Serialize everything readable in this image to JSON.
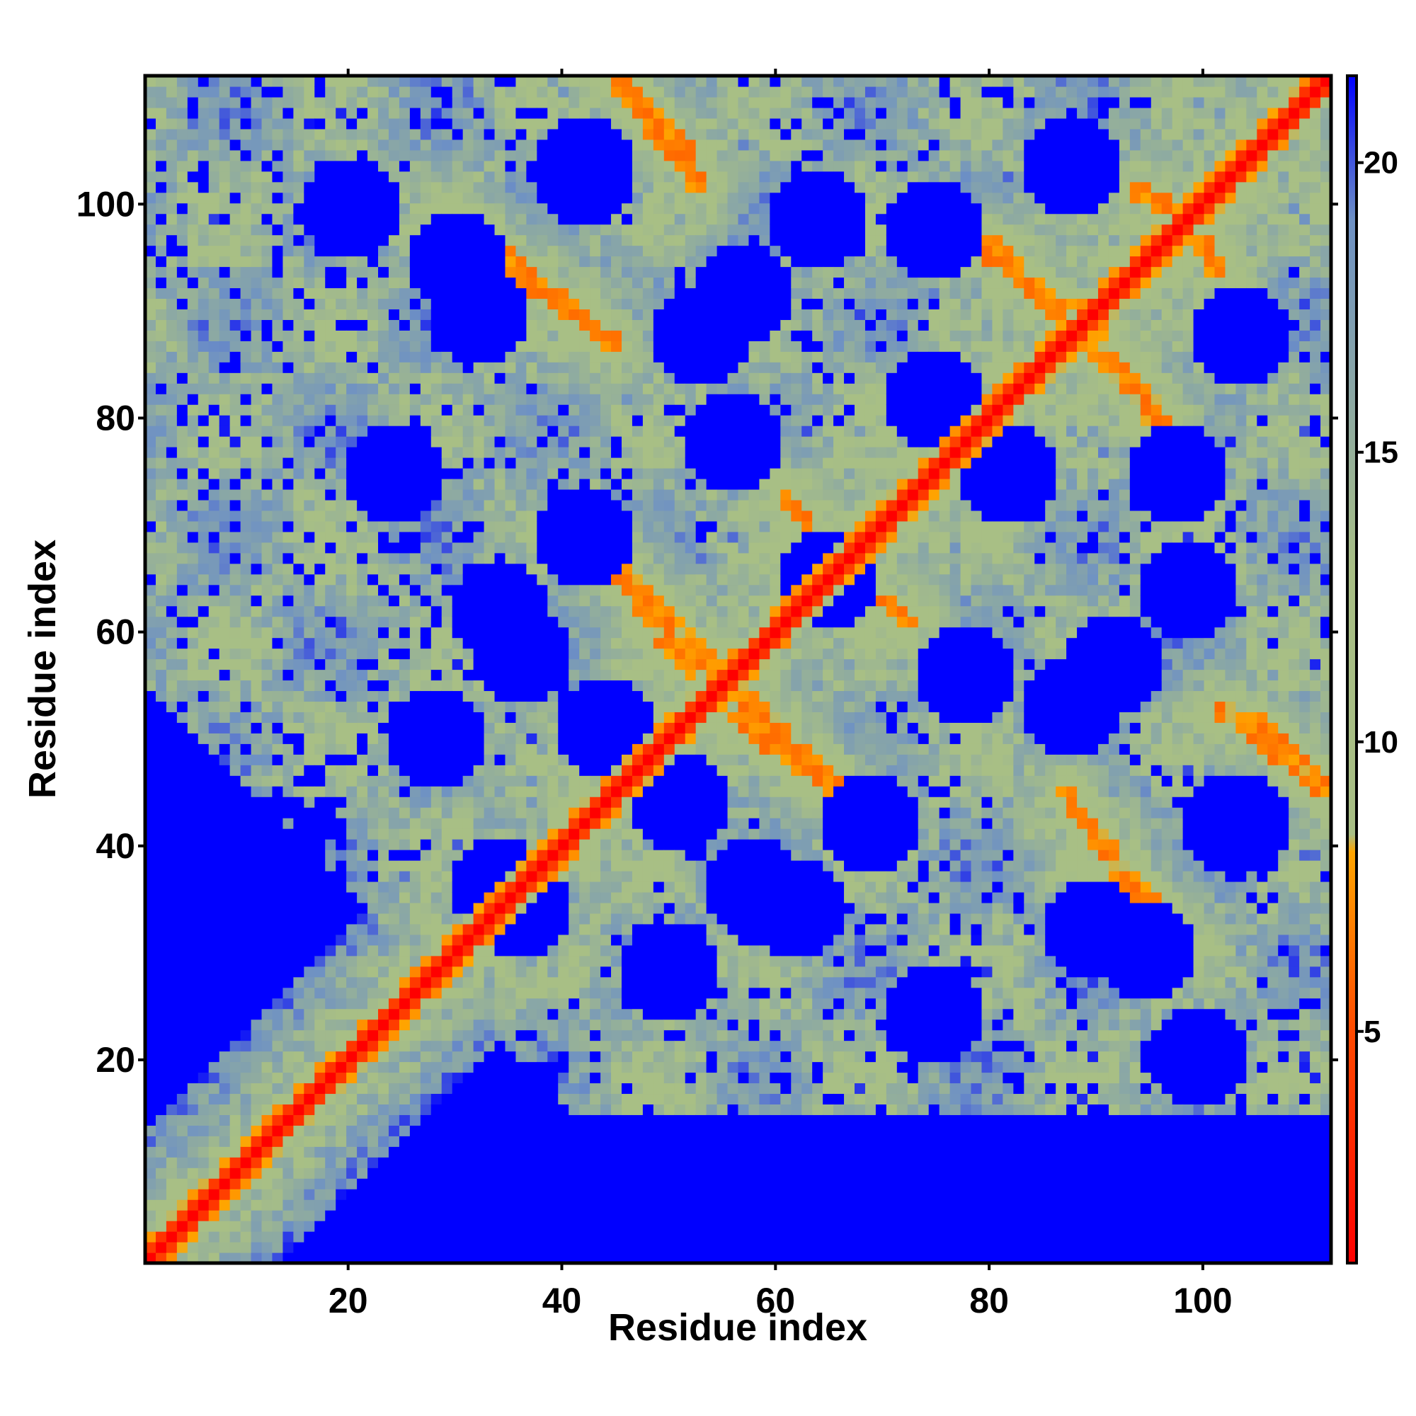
{
  "chart_data": {
    "type": "heatmap",
    "title": "",
    "xlabel": "Residue index",
    "ylabel": "Residue index",
    "xlim": [
      1,
      112
    ],
    "ylim": [
      1,
      112
    ],
    "x_ticks": [
      20,
      40,
      60,
      80,
      100
    ],
    "y_ticks": [
      20,
      40,
      60,
      80,
      100
    ],
    "colorbar": {
      "range": [
        1,
        21.5
      ],
      "ticks": [
        5,
        10,
        15,
        20
      ],
      "colors": [
        {
          "stop": 1,
          "color": "#ff0000"
        },
        {
          "stop": 5,
          "color": "#ff4a00"
        },
        {
          "stop": 8.1,
          "color": "#ffa500"
        },
        {
          "stop": 8.4,
          "color": "#a8bf85"
        },
        {
          "stop": 13,
          "color": "#a8bf85"
        },
        {
          "stop": 19,
          "color": "#6e91c4"
        },
        {
          "stop": 21.5,
          "color": "#0000ff"
        }
      ]
    },
    "values_description_free": true,
    "features": {
      "diagonal_width": 2,
      "antiparallel_strands": [
        {
          "x": [
            45,
            55
          ],
          "y": [
            66,
            56
          ]
        },
        {
          "x": [
            56,
            66
          ],
          "y": [
            52,
            45
          ]
        },
        {
          "x": [
            61,
            65
          ],
          "y": [
            73,
            67
          ]
        },
        {
          "x": [
            67,
            73
          ],
          "y": [
            65,
            61
          ]
        },
        {
          "x": [
            29,
            44
          ],
          "y": [
            98,
            88
          ]
        },
        {
          "x": [
            45,
            52
          ],
          "y": [
            112,
            105
          ]
        },
        {
          "x": [
            80,
            87
          ],
          "y": [
            96,
            90
          ]
        },
        {
          "x": [
            90,
            97
          ],
          "y": [
            88,
            80
          ]
        },
        {
          "x": [
            87,
            99
          ],
          "y": [
            45,
            30
          ]
        },
        {
          "x": [
            102,
            112
          ],
          "y": [
            53,
            45
          ]
        },
        {
          "x": [
            94,
            101
          ],
          "y": [
            102,
            96
          ]
        }
      ],
      "cavity_centers": [
        [
          42,
          104
        ],
        [
          88,
          104
        ],
        [
          32,
          90
        ],
        [
          53,
          88
        ],
        [
          104,
          88
        ],
        [
          75,
          82
        ],
        [
          98,
          75
        ],
        [
          65,
          65
        ],
        [
          99,
          64
        ],
        [
          36,
          58
        ],
        [
          78,
          56
        ],
        [
          92,
          57
        ],
        [
          51,
          44
        ],
        [
          69,
          42
        ],
        [
          103,
          42
        ],
        [
          36,
          34
        ],
        [
          95,
          30
        ],
        [
          62,
          34
        ],
        [
          28,
          50
        ],
        [
          24,
          75
        ],
        [
          20,
          100
        ]
      ]
    }
  }
}
